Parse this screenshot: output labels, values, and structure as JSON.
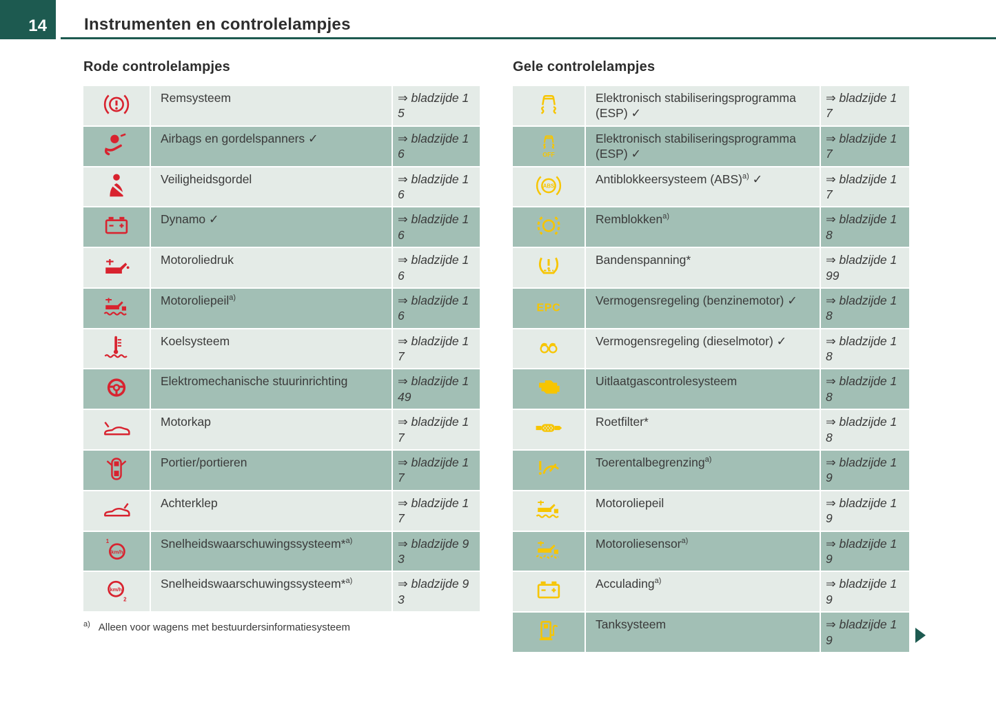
{
  "page": {
    "number": "14",
    "title": "Instrumenten en controlelampjes"
  },
  "symbols": {
    "check": "✓",
    "ref_arrow": "⇒"
  },
  "colors": {
    "accent_teal": "#1d5a50",
    "icon_red": "#d8232f",
    "icon_yellow": "#f7c500",
    "row_light": "#e4ebe7",
    "row_dark": "#a2bfb5"
  },
  "red_section": {
    "heading": "Rode controlelampjes",
    "rows": [
      {
        "icon": "brake-system-warning-icon",
        "label": "Remsysteem",
        "sup": "",
        "check": false,
        "ref_line1": "⇒ bladzijde 1",
        "ref_line2": "5"
      },
      {
        "icon": "airbag-warning-icon",
        "label": "Airbags en gordelspanners",
        "sup": "",
        "check": true,
        "ref_line1": "⇒ bladzijde 1",
        "ref_line2": "6"
      },
      {
        "icon": "seatbelt-warning-icon",
        "label": "Veiligheidsgordel",
        "sup": "",
        "check": false,
        "ref_line1": "⇒ bladzijde 1",
        "ref_line2": "6"
      },
      {
        "icon": "battery-warning-icon",
        "label": "Dynamo",
        "sup": "",
        "check": true,
        "ref_line1": "⇒ bladzijde 1",
        "ref_line2": "6"
      },
      {
        "icon": "oil-pressure-warning-icon",
        "label": "Motoroliedruk",
        "sup": "",
        "check": false,
        "ref_line1": "⇒ bladzijde 1",
        "ref_line2": "6"
      },
      {
        "icon": "oil-level-warning-icon",
        "label": "Motoroliepeil",
        "sup": "a)",
        "check": false,
        "ref_line1": "⇒ bladzijde 1",
        "ref_line2": "6"
      },
      {
        "icon": "coolant-warning-icon",
        "label": "Koelsysteem",
        "sup": "",
        "check": false,
        "ref_line1": "⇒ bladzijde 1",
        "ref_line2": "7"
      },
      {
        "icon": "steering-warning-icon",
        "label": "Elektromechanische stuurinrichting",
        "sup": "",
        "check": false,
        "ref_line1": "⇒ bladzijde 1",
        "ref_line2": "49"
      },
      {
        "icon": "bonnet-open-icon",
        "label": "Motorkap",
        "sup": "",
        "check": false,
        "ref_line1": "⇒ bladzijde 1",
        "ref_line2": "7"
      },
      {
        "icon": "door-open-icon",
        "label": "Portier/portieren",
        "sup": "",
        "check": false,
        "ref_line1": "⇒ bladzijde 1",
        "ref_line2": "7"
      },
      {
        "icon": "tailgate-open-icon",
        "label": "Achterklep",
        "sup": "",
        "check": false,
        "ref_line1": "⇒ bladzijde 1",
        "ref_line2": "7"
      },
      {
        "icon": "speed-warning-1-icon",
        "label": "Snelheidswaarschuwingssysteem*",
        "sup": "a)",
        "check": false,
        "ref_line1": "⇒ bladzijde 9",
        "ref_line2": "3"
      },
      {
        "icon": "speed-warning-2-icon",
        "label": "Snelheidswaarschuwingssysteem*",
        "sup": "a)",
        "check": false,
        "ref_line1": "⇒ bladzijde 9",
        "ref_line2": "3"
      }
    ],
    "footnote_marker": "a)",
    "footnote_text": "Alleen voor wagens met bestuurdersinformatiesysteem"
  },
  "yellow_section": {
    "heading": "Gele controlelampjes",
    "rows": [
      {
        "icon": "esp-warning-icon",
        "label": "Elektronisch stabiliseringsprogramma (ESP)",
        "sup": "",
        "check": true,
        "ref_line1": "⇒ bladzijde 1",
        "ref_line2": "7"
      },
      {
        "icon": "esp-off-icon",
        "label": "Elektronisch stabiliseringsprogramma (ESP)",
        "sup": "",
        "check": true,
        "ref_line1": "⇒ bladzijde 1",
        "ref_line2": "7"
      },
      {
        "icon": "abs-warning-icon",
        "label": "Antiblokkeersysteem (ABS)",
        "sup": "a)",
        "check": true,
        "ref_line1": "⇒ bladzijde 1",
        "ref_line2": "7"
      },
      {
        "icon": "brake-pads-warning-icon",
        "label": "Remblokken",
        "sup": "a)",
        "check": false,
        "ref_line1": "⇒ bladzijde 1",
        "ref_line2": "8"
      },
      {
        "icon": "tyre-pressure-warning-icon",
        "label": "Bandenspanning*",
        "sup": "",
        "check": false,
        "ref_line1": "⇒ bladzijde 1",
        "ref_line2": "99"
      },
      {
        "icon": "epc-warning-icon",
        "label": "Vermogensregeling (benzinemotor)",
        "sup": "",
        "check": true,
        "ref_line1": "⇒ bladzijde 1",
        "ref_line2": "8"
      },
      {
        "icon": "glow-plug-icon",
        "label": "Vermogensregeling (dieselmotor)",
        "sup": "",
        "check": true,
        "ref_line1": "⇒ bladzijde 1",
        "ref_line2": "8"
      },
      {
        "icon": "engine-emission-icon",
        "label": "Uitlaatgascontrolesysteem",
        "sup": "",
        "check": false,
        "ref_line1": "⇒ bladzijde 1",
        "ref_line2": "8"
      },
      {
        "icon": "particulate-filter-icon",
        "label": "Roetfilter*",
        "sup": "",
        "check": false,
        "ref_line1": "⇒ bladzijde 1",
        "ref_line2": "8"
      },
      {
        "icon": "rev-limiter-icon",
        "label": "Toerentalbegrenzing",
        "sup": "a)",
        "check": false,
        "ref_line1": "⇒ bladzijde 1",
        "ref_line2": "9"
      },
      {
        "icon": "oil-level-yellow-icon",
        "label": "Motoroliepeil",
        "sup": "",
        "check": false,
        "ref_line1": "⇒ bladzijde 1",
        "ref_line2": "9"
      },
      {
        "icon": "oil-sensor-icon",
        "label": "Motoroliesensor",
        "sup": "a)",
        "check": false,
        "ref_line1": "⇒ bladzijde 1",
        "ref_line2": "9"
      },
      {
        "icon": "battery-charge-icon",
        "label": "Acculading",
        "sup": "a)",
        "check": false,
        "ref_line1": "⇒ bladzijde 1",
        "ref_line2": "9"
      },
      {
        "icon": "fuel-system-icon",
        "label": "Tanksysteem",
        "sup": "",
        "check": false,
        "ref_line1": "⇒ bladzijde 1",
        "ref_line2": "9"
      }
    ]
  }
}
